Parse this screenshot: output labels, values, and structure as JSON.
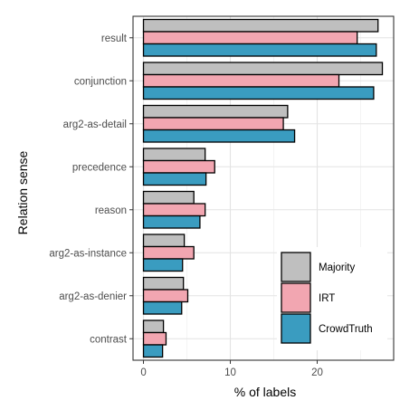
{
  "chart_data": {
    "type": "bar",
    "orientation": "horizontal",
    "xlabel": "% of labels",
    "ylabel": "Relation sense",
    "xlim": [
      -1.2,
      28.8
    ],
    "xticks": [
      "0",
      "10",
      "20"
    ],
    "xtick_values": [
      0,
      10,
      20
    ],
    "grid": true,
    "legend_position": "bottom-right",
    "categories": [
      "result",
      "conjunction",
      "arg2-as-detail",
      "precedence",
      "reason",
      "arg2-as-instance",
      "arg2-as-denier",
      "contrast"
    ],
    "series": [
      {
        "name": "Majority",
        "color": "#bfbfbf",
        "values": [
          27.0,
          27.5,
          16.6,
          7.1,
          5.8,
          4.7,
          4.6,
          2.3
        ]
      },
      {
        "name": "IRT",
        "color": "#f2a6b1",
        "values": [
          24.6,
          22.5,
          16.1,
          8.2,
          7.1,
          5.8,
          5.1,
          2.6
        ]
      },
      {
        "name": "CrowdTruth",
        "color": "#3a9cc0",
        "values": [
          26.8,
          26.5,
          17.4,
          7.2,
          6.5,
          4.5,
          4.4,
          2.2
        ]
      }
    ]
  }
}
